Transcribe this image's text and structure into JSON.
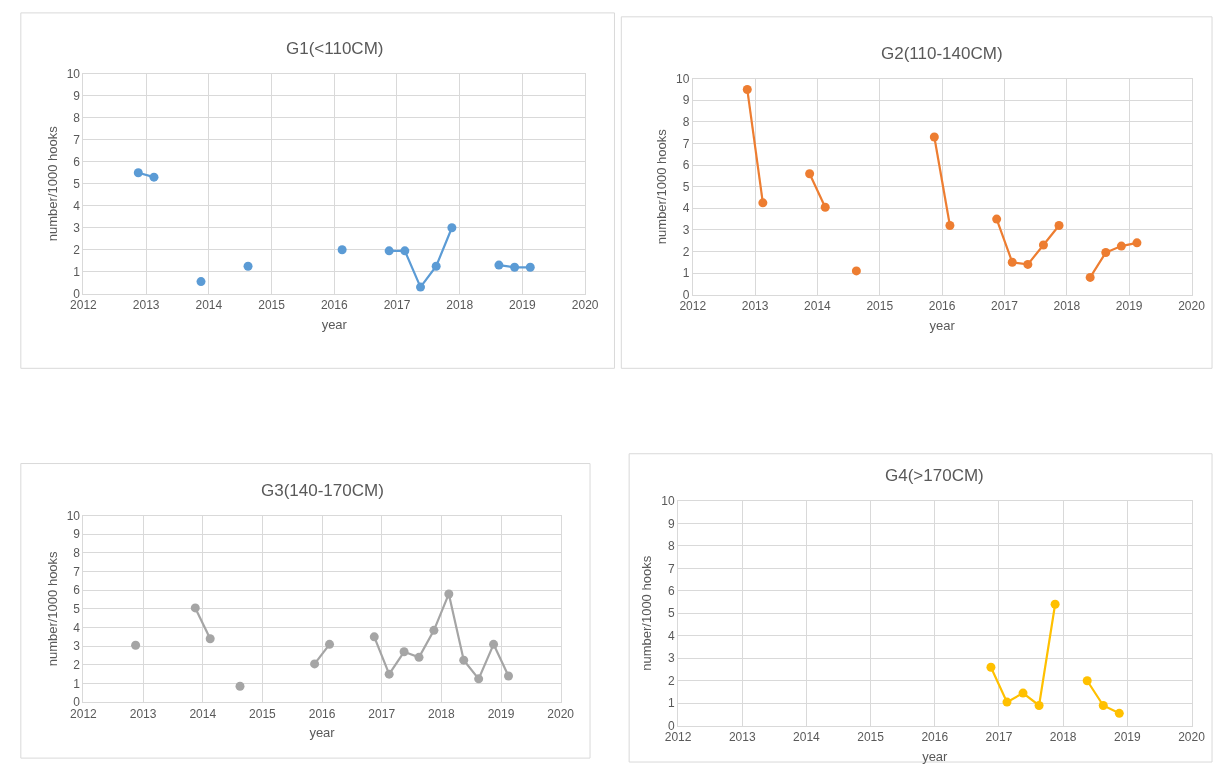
{
  "chart_data": [
    {
      "type": "line",
      "title": "G1(<110CM)",
      "xlabel": "year",
      "ylabel": "number/1000 hooks",
      "marker": "circle",
      "grid": true,
      "x": [
        2012.875,
        2013.125,
        2013.375,
        2013.625,
        2013.875,
        2014.125,
        2014.375,
        2014.625,
        2014.875,
        2015.125,
        2015.375,
        2015.625,
        2015.875,
        2016.125,
        2016.375,
        2016.625,
        2016.875,
        2017.125,
        2017.375,
        2017.625,
        2017.875,
        2018.125,
        2018.375,
        2018.625,
        2018.875,
        2019.125
      ],
      "series": [
        {
          "color": "#5b9bd5",
          "values": [
            5.5,
            5.3,
            null,
            null,
            0.55,
            null,
            null,
            1.25,
            null,
            null,
            null,
            null,
            null,
            2.0,
            null,
            null,
            1.95,
            1.95,
            0.3,
            1.25,
            3.0,
            null,
            null,
            1.3,
            1.2,
            1.2
          ]
        }
      ],
      "xlim": [
        2012,
        2020
      ],
      "xticks": [
        2012,
        2013,
        2014,
        2015,
        2016,
        2017,
        2018,
        2019,
        2020
      ],
      "ylim": [
        0,
        10
      ],
      "yticks": [
        0,
        1,
        2,
        3,
        4,
        5,
        6,
        7,
        8,
        9,
        10
      ]
    },
    {
      "type": "line",
      "title": "G2(110-140CM)",
      "xlabel": "year",
      "ylabel": "number/1000 hooks",
      "marker": "circle",
      "grid": true,
      "x": [
        2012.875,
        2013.125,
        2013.375,
        2013.625,
        2013.875,
        2014.125,
        2014.375,
        2014.625,
        2014.875,
        2015.125,
        2015.375,
        2015.625,
        2015.875,
        2016.125,
        2016.375,
        2016.625,
        2016.875,
        2017.125,
        2017.375,
        2017.625,
        2017.875,
        2018.125,
        2018.375,
        2018.625,
        2018.875,
        2019.125
      ],
      "series": [
        {
          "color": "#ed7d31",
          "values": [
            9.5,
            4.25,
            null,
            null,
            5.6,
            4.05,
            null,
            1.1,
            null,
            null,
            null,
            null,
            7.3,
            3.2,
            null,
            null,
            3.5,
            1.5,
            1.4,
            2.3,
            3.2,
            null,
            0.8,
            1.95,
            2.25,
            2.4
          ]
        }
      ],
      "xlim": [
        2012,
        2020
      ],
      "xticks": [
        2012,
        2013,
        2014,
        2015,
        2016,
        2017,
        2018,
        2019,
        2020
      ],
      "ylim": [
        0,
        10
      ],
      "yticks": [
        0,
        1,
        2,
        3,
        4,
        5,
        6,
        7,
        8,
        9,
        10
      ]
    },
    {
      "type": "line",
      "title": "G3(140-170CM)",
      "xlabel": "year",
      "ylabel": "number/1000 hooks",
      "marker": "circle",
      "grid": true,
      "x": [
        2012.875,
        2013.125,
        2013.375,
        2013.625,
        2013.875,
        2014.125,
        2014.375,
        2014.625,
        2014.875,
        2015.125,
        2015.375,
        2015.625,
        2015.875,
        2016.125,
        2016.375,
        2016.625,
        2016.875,
        2017.125,
        2017.375,
        2017.625,
        2017.875,
        2018.125,
        2018.375,
        2018.625,
        2018.875,
        2019.125
      ],
      "series": [
        {
          "color": "#a5a5a5",
          "values": [
            3.05,
            null,
            null,
            null,
            5.05,
            3.4,
            null,
            0.85,
            null,
            null,
            null,
            null,
            2.05,
            3.1,
            null,
            null,
            3.5,
            1.5,
            2.7,
            2.4,
            3.85,
            5.8,
            2.25,
            1.25,
            3.1,
            1.4
          ]
        }
      ],
      "xlim": [
        2012,
        2020
      ],
      "xticks": [
        2012,
        2013,
        2014,
        2015,
        2016,
        2017,
        2018,
        2019,
        2020
      ],
      "ylim": [
        0,
        10
      ],
      "yticks": [
        0,
        1,
        2,
        3,
        4,
        5,
        6,
        7,
        8,
        9,
        10
      ]
    },
    {
      "type": "line",
      "title": "G4(>170CM)",
      "xlabel": "year",
      "ylabel": "number/1000 hooks",
      "marker": "circle",
      "grid": true,
      "x": [
        2016.875,
        2017.125,
        2017.375,
        2017.625,
        2017.875,
        2018.125,
        2018.375,
        2018.625,
        2018.875
      ],
      "series": [
        {
          "color": "#ffc000",
          "values": [
            2.6,
            1.05,
            1.45,
            0.9,
            5.4,
            null,
            2.0,
            0.9,
            0.55
          ]
        }
      ],
      "xlim": [
        2012,
        2020
      ],
      "xticks": [
        2012,
        2013,
        2014,
        2015,
        2016,
        2017,
        2018,
        2019,
        2020
      ],
      "ylim": [
        0,
        10
      ],
      "yticks": [
        0,
        1,
        2,
        3,
        4,
        5,
        6,
        7,
        8,
        9,
        10
      ]
    }
  ]
}
